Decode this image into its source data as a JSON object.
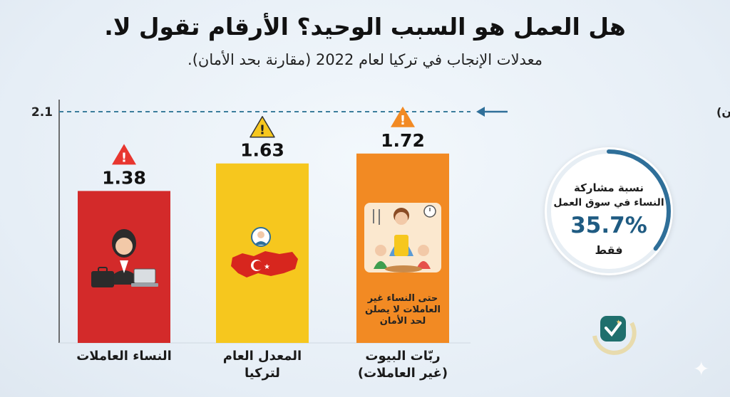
{
  "title": "هل العمل هو السبب الوحيد؟ الأرقام تقول لا.",
  "subtitle": "معدلات الإنجاب في تركيا لعام 2022 (مقارنة بحد الأمان).",
  "chart_data": {
    "type": "bar",
    "categories": [
      "النساء العاملات",
      "المعدل العام لتركيا",
      "ربّات البيوت (غير العاملات)"
    ],
    "category_lines": [
      [
        "النساء العاملات"
      ],
      [
        "المعدل العام",
        "لتركيا"
      ],
      [
        "ربّات البيوت",
        "(غير العاملات)"
      ]
    ],
    "values": [
      1.38,
      1.63,
      1.72
    ],
    "value_labels": [
      "1.38",
      "1.63",
      "1.72"
    ],
    "bar_colors": [
      "#d32a2a",
      "#f6c71e",
      "#f28a23"
    ],
    "ylim": [
      0,
      2.1
    ],
    "reference_line": {
      "value": 2.1,
      "label": "2.1",
      "annotation": "(حد تجدد السكان / الأمان)"
    },
    "warning_icons": [
      "warning-icon-red",
      "warning-icon-yellow",
      "warning-icon-orange"
    ],
    "bar_note": "حتى النساء غير العاملات لا يصلن لحد الأمان"
  },
  "stat_card": {
    "line1": "نسبة مشاركة",
    "line2": "النساء في سوق العمل",
    "value": "35.7%",
    "line3": "فقط",
    "ring_fraction": 0.357,
    "ring_color": "#2f6f99"
  },
  "colors": {
    "accent_blue": "#2f6f99",
    "dashed_line": "#3b7d9c"
  }
}
